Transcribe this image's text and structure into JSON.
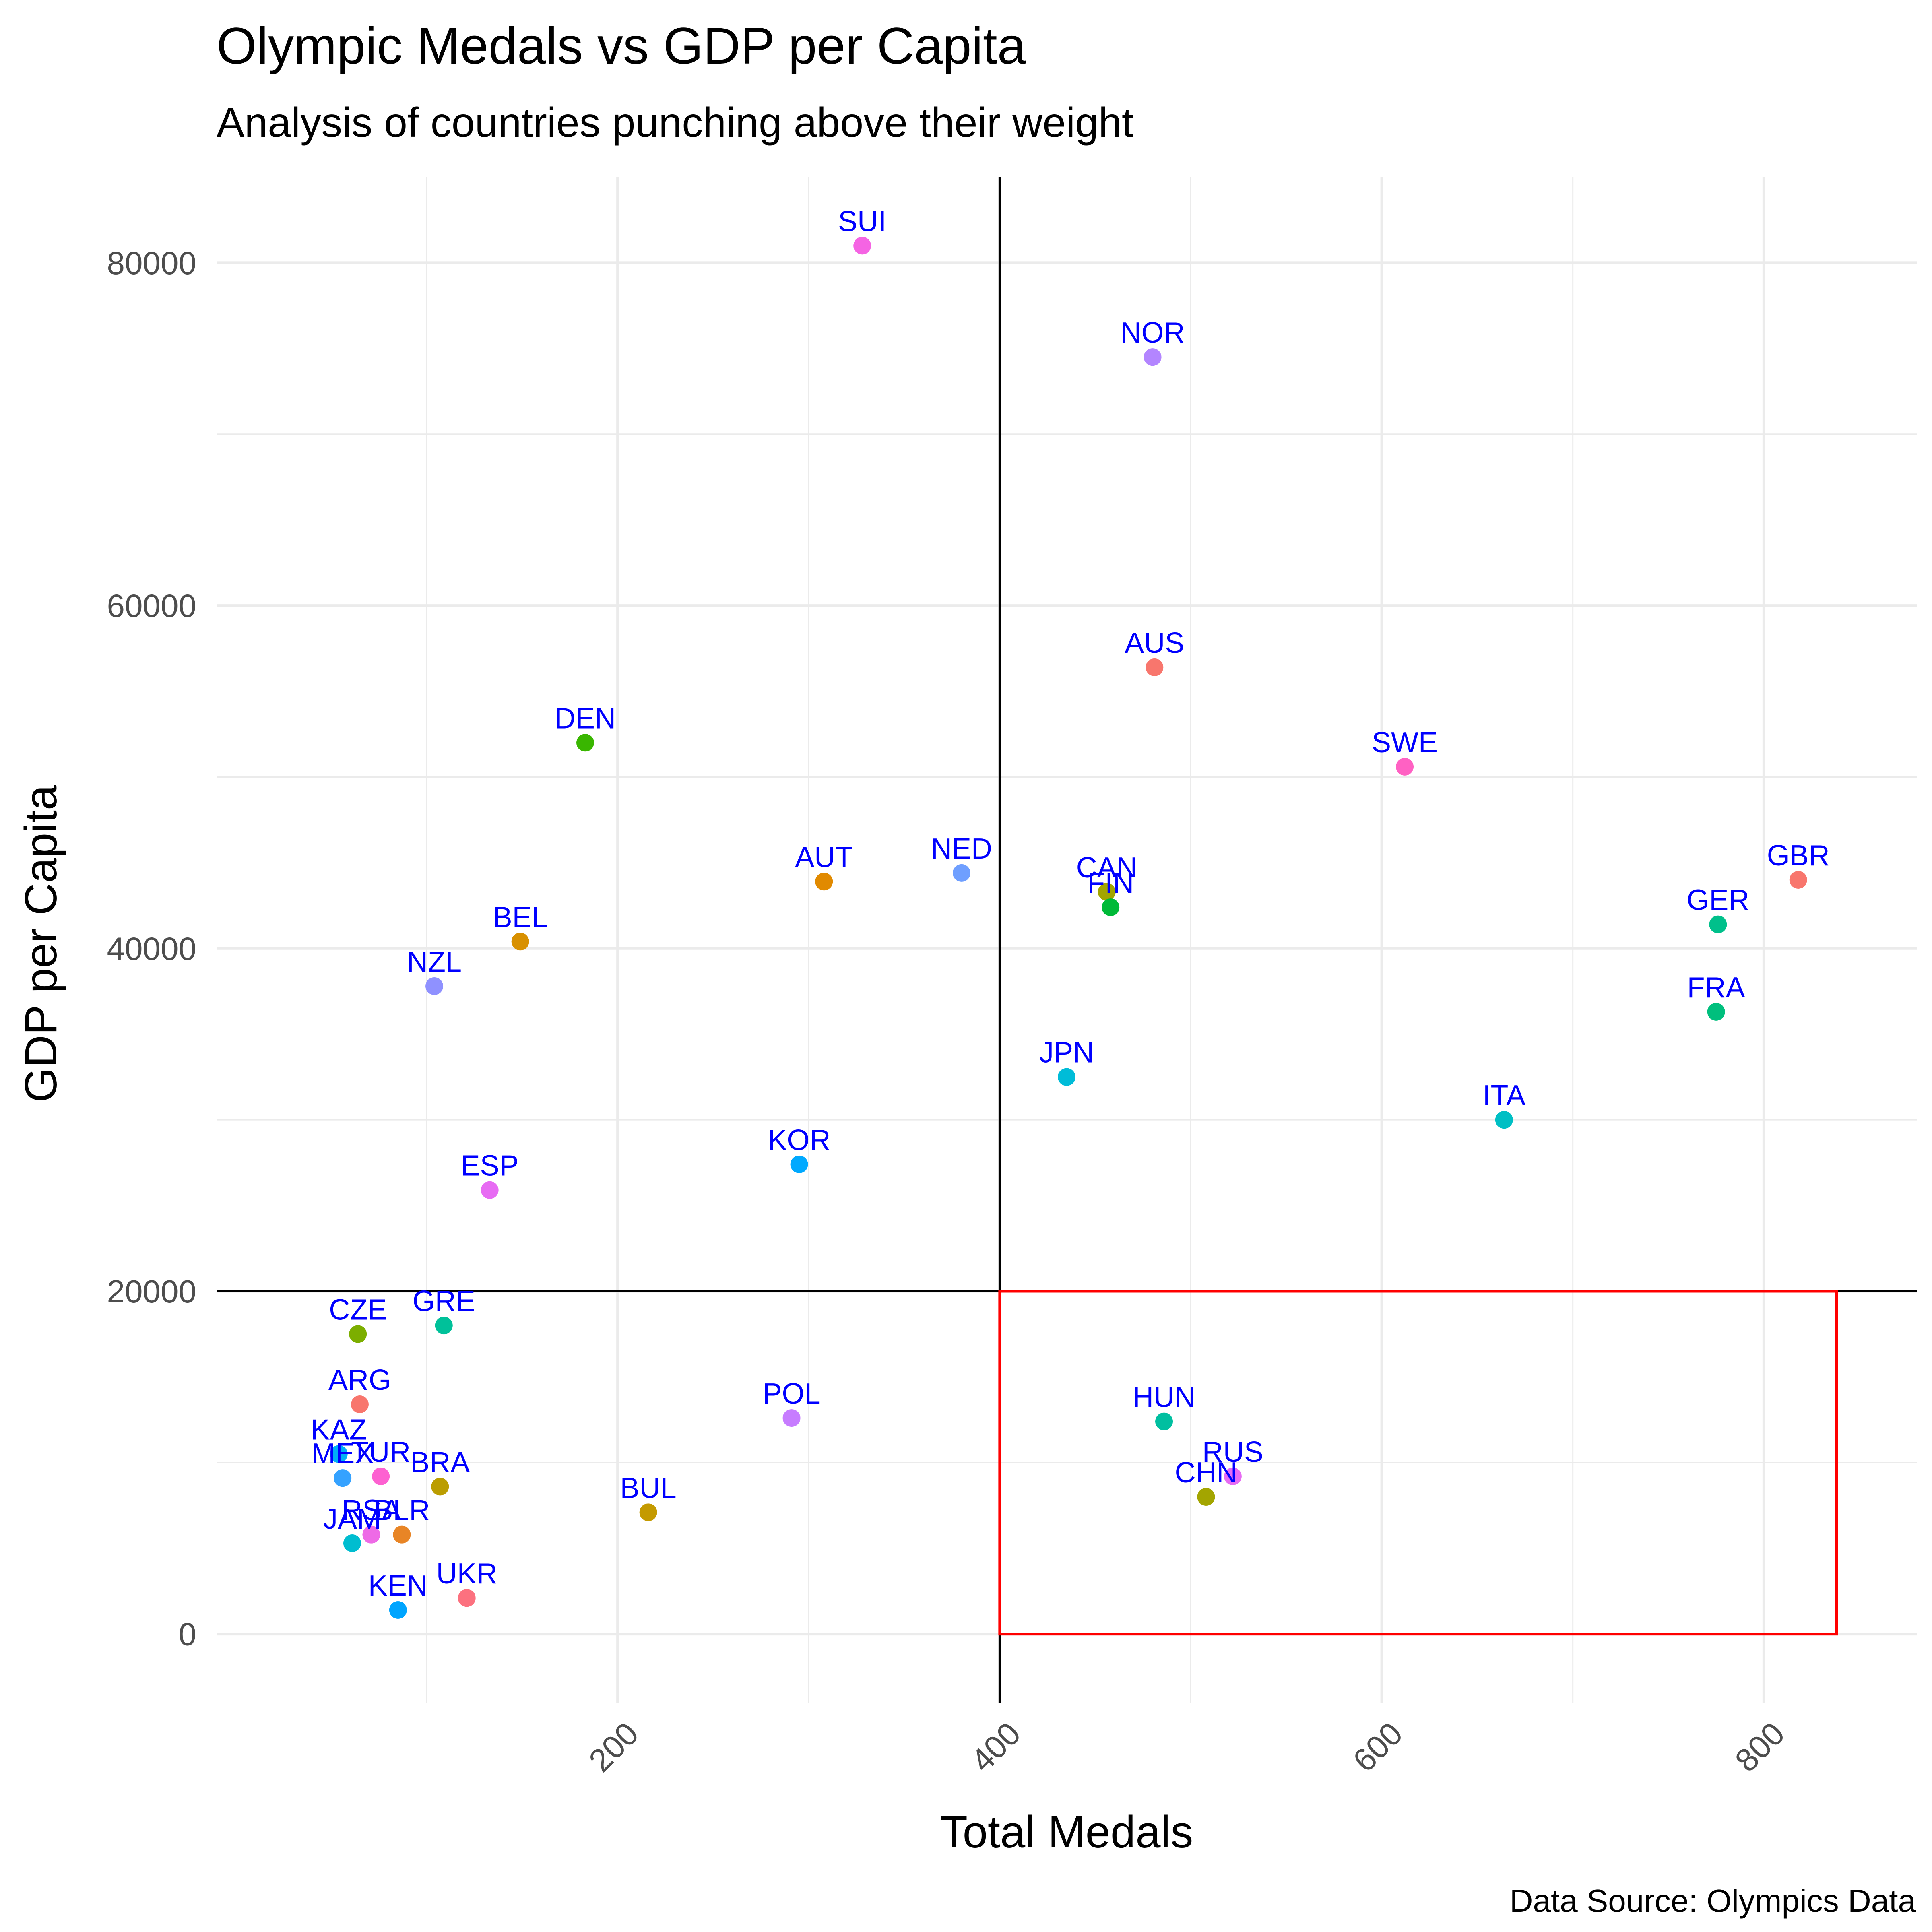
{
  "chart_data": {
    "type": "scatter",
    "title": "Olympic Medals vs GDP per Capita",
    "subtitle": "Analysis of countries punching above their weight",
    "xlabel": "Total Medals",
    "ylabel": "GDP per Capita",
    "caption": "Data Source: Olympics Data",
    "xlim": [
      -10,
      880
    ],
    "ylim": [
      -4000,
      85000
    ],
    "x_ticks": [
      200,
      400,
      600,
      800
    ],
    "y_ticks": [
      0,
      20000,
      40000,
      60000,
      80000
    ],
    "reference_lines": {
      "x": 400,
      "y": 20000
    },
    "highlight_box": {
      "x": [
        400,
        838
      ],
      "y": [
        0,
        20000
      ],
      "color": "#ff0000"
    },
    "grid": true,
    "legend": "none",
    "label_color": "#0000ff",
    "points": [
      {
        "label": "SUI",
        "x": 328,
        "y": 81000,
        "color": "#f564e3"
      },
      {
        "label": "NOR",
        "x": 480,
        "y": 74500,
        "color": "#b385ff"
      },
      {
        "label": "AUS",
        "x": 481,
        "y": 56400,
        "color": "#f8766d"
      },
      {
        "label": "DEN",
        "x": 183,
        "y": 52000,
        "color": "#39b600"
      },
      {
        "label": "SWE",
        "x": 612,
        "y": 50600,
        "color": "#ff61c3"
      },
      {
        "label": "GBR",
        "x": 818,
        "y": 44000,
        "color": "#f8766d"
      },
      {
        "label": "AUT",
        "x": 308,
        "y": 43900,
        "color": "#e18a00"
      },
      {
        "label": "NED",
        "x": 380,
        "y": 44400,
        "color": "#6f9fff"
      },
      {
        "label": "CAN",
        "x": 456,
        "y": 43300,
        "color": "#a3a500"
      },
      {
        "label": "FIN",
        "x": 458,
        "y": 42400,
        "color": "#00ba38"
      },
      {
        "label": "GER",
        "x": 776,
        "y": 41400,
        "color": "#00c08b"
      },
      {
        "label": "BEL",
        "x": 149,
        "y": 40400,
        "color": "#d89000"
      },
      {
        "label": "NZL",
        "x": 104,
        "y": 37800,
        "color": "#8f91ff"
      },
      {
        "label": "FRA",
        "x": 775,
        "y": 36300,
        "color": "#00bf7d"
      },
      {
        "label": "JPN",
        "x": 435,
        "y": 32500,
        "color": "#00bcd8"
      },
      {
        "label": "ITA",
        "x": 664,
        "y": 30000,
        "color": "#00bfc4"
      },
      {
        "label": "KOR",
        "x": 295,
        "y": 27400,
        "color": "#00a9ff"
      },
      {
        "label": "ESP",
        "x": 133,
        "y": 25900,
        "color": "#e76bf3"
      },
      {
        "label": "GRE",
        "x": 109,
        "y": 18000,
        "color": "#00c19a"
      },
      {
        "label": "CZE",
        "x": 64,
        "y": 17500,
        "color": "#7cae00"
      },
      {
        "label": "ARG",
        "x": 65,
        "y": 13400,
        "color": "#f8766d"
      },
      {
        "label": "POL",
        "x": 291,
        "y": 12600,
        "color": "#c77cff"
      },
      {
        "label": "HUN",
        "x": 486,
        "y": 12400,
        "color": "#00bfa0"
      },
      {
        "label": "KAZ",
        "x": 54,
        "y": 10500,
        "color": "#00b0f6"
      },
      {
        "label": "MEX",
        "x": 56,
        "y": 9100,
        "color": "#35a2ff"
      },
      {
        "label": "TUR",
        "x": 76,
        "y": 9200,
        "color": "#fd61d1"
      },
      {
        "label": "RUS",
        "x": 522,
        "y": 9200,
        "color": "#e76bf3"
      },
      {
        "label": "BRA",
        "x": 107,
        "y": 8600,
        "color": "#bb9d00"
      },
      {
        "label": "CHN",
        "x": 508,
        "y": 8000,
        "color": "#a3a500"
      },
      {
        "label": "BUL",
        "x": 216,
        "y": 7100,
        "color": "#c49a00"
      },
      {
        "label": "RSA",
        "x": 71,
        "y": 5800,
        "color": "#ee6ae6"
      },
      {
        "label": "BLR",
        "x": 87,
        "y": 5800,
        "color": "#e88526"
      },
      {
        "label": "JAM",
        "x": 61,
        "y": 5300,
        "color": "#00bdd0"
      },
      {
        "label": "UKR",
        "x": 121,
        "y": 2100,
        "color": "#fc717f"
      },
      {
        "label": "KEN",
        "x": 85,
        "y": 1400,
        "color": "#00a5ff"
      }
    ]
  }
}
